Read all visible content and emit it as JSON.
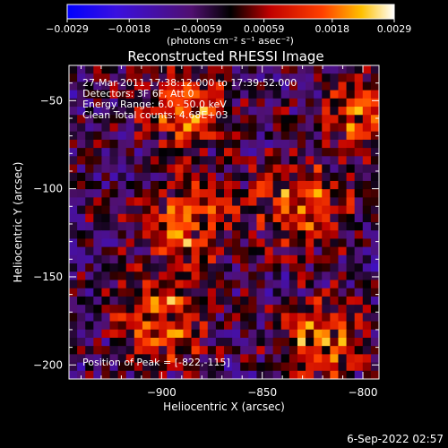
{
  "chart_data": {
    "type": "heatmap",
    "title": "Reconstructed RHESSI Image",
    "xlabel": "Heliocentric X (arcsec)",
    "ylabel": "Heliocentric Y (arcsec)",
    "xlim": [
      -946,
      -792
    ],
    "ylim": [
      -208,
      -30
    ],
    "xticks": [
      -900,
      -850,
      -800
    ],
    "xtick_labels": [
      "−900",
      "−850",
      "−800"
    ],
    "yticks": [
      -50,
      -100,
      -150,
      -200
    ],
    "ytick_labels": [
      "−50",
      "−100",
      "−150",
      "−200"
    ],
    "colorbar": {
      "min": -0.0029,
      "max": 0.0029,
      "ticks": [
        -0.0029,
        -0.0018,
        -0.00059,
        0.00059,
        0.0018,
        0.0029
      ],
      "tick_labels": [
        "−0.0029",
        "−0.0018",
        "−0.00059",
        "0.00059",
        "0.0018",
        "0.0029"
      ],
      "units": "(photons cm⁻² s⁻¹ asec⁻²)"
    },
    "sources": [
      {
        "x": -890,
        "y": -55
      },
      {
        "x": -885,
        "y": -120
      },
      {
        "x": -830,
        "y": -110
      },
      {
        "x": -820,
        "y": -185
      },
      {
        "x": -795,
        "y": -60
      },
      {
        "x": -900,
        "y": -175
      }
    ],
    "annotations": [
      "27-Mar-2011 17:38:12.000 to 17:39:52.000",
      "Detectors: 3F 6F, Att 0",
      "Energy Range: 6.0 - 50.0 keV",
      "Clean      Total counts: 4.68E+03"
    ],
    "peak_label": "Position of Peak = [-822,-115]",
    "colors": {
      "colormap": [
        "#0000ff",
        "#6a2bd0",
        "#5a2a8a",
        "#000000",
        "#b80000",
        "#ff5a00",
        "#ffd000",
        "#ffffff"
      ]
    }
  },
  "footer_date": "6-Sep-2022 02:57"
}
